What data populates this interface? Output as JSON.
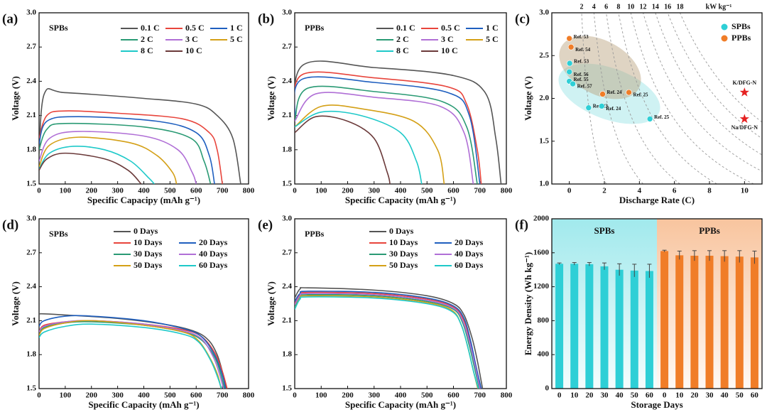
{
  "chart_data": [
    {
      "type": "line",
      "panel": "(a)",
      "label": "SPBs",
      "xlabel": "Specific Capacipy (mAh g⁻¹)",
      "ylabel": "Voltage (V)",
      "xlim": [
        0,
        800
      ],
      "ylim": [
        1.5,
        3.0
      ],
      "xticks": [
        0,
        100,
        200,
        300,
        400,
        500,
        600,
        700,
        800
      ],
      "yticks": [
        1.5,
        1.8,
        2.1,
        2.4,
        2.7,
        {
          "value": 3,
          "label": "3.0"
        }
      ],
      "legend": "upper right",
      "series": [
        {
          "name": "0.1 C",
          "color": "#555555",
          "x": [
            0,
            20,
            100,
            400,
            600,
            680,
            740,
            770
          ],
          "values": [
            1.75,
            2.29,
            2.3,
            2.25,
            2.2,
            2.1,
            1.9,
            1.5
          ]
        },
        {
          "name": "0.5 C",
          "color": "#e8453c",
          "x": [
            0,
            30,
            100,
            300,
            550,
            650,
            680,
            700
          ],
          "values": [
            1.9,
            2.1,
            2.14,
            2.12,
            2.07,
            1.95,
            1.8,
            1.5
          ]
        },
        {
          "name": "1 C",
          "color": "#1f5fbf",
          "x": [
            0,
            30,
            150,
            450,
            600,
            650,
            670
          ],
          "values": [
            1.85,
            2.05,
            2.09,
            2.05,
            1.95,
            1.75,
            1.5
          ]
        },
        {
          "name": "2 C",
          "color": "#2a9a74",
          "x": [
            0,
            30,
            100,
            400,
            580,
            630,
            655
          ],
          "values": [
            1.8,
            1.98,
            2.03,
            2.0,
            1.9,
            1.7,
            1.5
          ]
        },
        {
          "name": "3 C",
          "color": "#b06fd6",
          "x": [
            0,
            40,
            150,
            400,
            530,
            585,
            600
          ],
          "values": [
            1.7,
            1.9,
            1.96,
            1.92,
            1.8,
            1.6,
            1.5
          ]
        },
        {
          "name": "5 C",
          "color": "#d4a017",
          "x": [
            0,
            40,
            150,
            350,
            450,
            510,
            525
          ],
          "values": [
            1.65,
            1.84,
            1.91,
            1.86,
            1.75,
            1.6,
            1.5
          ]
        },
        {
          "name": "8 C",
          "color": "#1ec9c9",
          "x": [
            0,
            40,
            130,
            250,
            350,
            420,
            440
          ],
          "values": [
            1.63,
            1.77,
            1.83,
            1.8,
            1.7,
            1.55,
            1.5
          ]
        },
        {
          "name": "10 C",
          "color": "#6b3a3a",
          "x": [
            0,
            30,
            100,
            250,
            340,
            390
          ],
          "values": [
            1.62,
            1.72,
            1.77,
            1.72,
            1.62,
            1.5
          ]
        }
      ]
    },
    {
      "type": "line",
      "panel": "(b)",
      "label": "PPBs",
      "xlabel": "Specific Capacity (mAh g⁻¹)",
      "ylabel": "Voltage (V)",
      "xlim": [
        0,
        800
      ],
      "ylim": [
        1.5,
        3.0
      ],
      "xticks": [
        0,
        100,
        200,
        300,
        400,
        500,
        600,
        700,
        800
      ],
      "yticks": [
        1.5,
        1.8,
        2.1,
        2.4,
        2.7,
        {
          "value": 3,
          "label": "3.0"
        }
      ],
      "legend": "upper right",
      "series": [
        {
          "name": "0.1 C",
          "color": "#555555",
          "x": [
            0,
            30,
            300,
            600,
            720,
            760,
            780
          ],
          "values": [
            2.0,
            2.54,
            2.52,
            2.45,
            2.3,
            1.9,
            1.5
          ]
        },
        {
          "name": "0.5 C",
          "color": "#e8453c",
          "x": [
            0,
            30,
            300,
            580,
            650,
            690,
            705
          ],
          "values": [
            2.1,
            2.46,
            2.43,
            2.35,
            2.2,
            1.8,
            1.5
          ]
        },
        {
          "name": "1 C",
          "color": "#1f5fbf",
          "x": [
            0,
            30,
            300,
            580,
            660,
            700
          ],
          "values": [
            2.1,
            2.42,
            2.39,
            2.3,
            2.1,
            1.5
          ]
        },
        {
          "name": "2 C",
          "color": "#2a9a74",
          "x": [
            0,
            50,
            300,
            560,
            650,
            690
          ],
          "values": [
            2.05,
            2.34,
            2.31,
            2.22,
            2.0,
            1.5
          ]
        },
        {
          "name": "3 C",
          "color": "#b06fd6",
          "x": [
            0,
            80,
            300,
            550,
            640,
            675
          ],
          "values": [
            2.05,
            2.29,
            2.26,
            2.18,
            1.95,
            1.5
          ]
        },
        {
          "name": "5 C",
          "color": "#d4a017",
          "x": [
            0,
            100,
            250,
            450,
            540,
            565
          ],
          "values": [
            2.0,
            2.18,
            2.16,
            2.05,
            1.8,
            1.5
          ]
        },
        {
          "name": "8 C",
          "color": "#1ec9c9",
          "x": [
            0,
            100,
            250,
            400,
            460,
            480
          ],
          "values": [
            2.0,
            2.13,
            2.1,
            1.95,
            1.7,
            1.5
          ]
        },
        {
          "name": "10 C",
          "color": "#6b3a3a",
          "x": [
            0,
            80,
            200,
            300,
            350,
            360
          ],
          "values": [
            1.95,
            2.09,
            2.05,
            1.9,
            1.6,
            1.5
          ]
        }
      ]
    },
    {
      "type": "scatter",
      "panel": "(c)",
      "xlabel": "Discharge Rate (C)",
      "ylabel": "Voltage (V)",
      "xlim": [
        -1,
        11
      ],
      "ylim": [
        1.0,
        3.0
      ],
      "xticks": [
        0,
        2,
        4,
        6,
        8,
        10
      ],
      "yticks": [
        {
          "value": 1,
          "label": "1.0"
        },
        1.5,
        {
          "value": 2,
          "label": "2.0"
        },
        2.5,
        {
          "value": 3,
          "label": "3.0"
        }
      ],
      "power_ticks": [
        2,
        4,
        6,
        8,
        10,
        12,
        14,
        16,
        18
      ],
      "power_unit": "kW kg⁻¹",
      "legend": "upper right",
      "series": [
        {
          "name": "SPBs",
          "color": "#2ecfd6",
          "x": [
            0.02,
            0,
            0,
            0.2,
            1.1,
            1.85,
            4.6
          ],
          "values": [
            2.41,
            2.31,
            2.2,
            2.17,
            1.89,
            1.91,
            1.76
          ],
          "labels": [
            "Ref. 53",
            "Ref. 56",
            "Ref. 55",
            "Ref. 57",
            "Ref. 23",
            "Ref. 24",
            "Ref. 25"
          ]
        },
        {
          "name": "PPBs",
          "color": "#f07d28",
          "x": [
            0,
            0.1,
            1.9,
            3.4
          ],
          "values": [
            2.7,
            2.6,
            2.05,
            2.07
          ],
          "labels": [
            "Ref. 53",
            "Ref. 54",
            "Ref. 24",
            "Ref. 25"
          ]
        }
      ],
      "highlights": [
        {
          "label": "K/DFG-N",
          "x": 10,
          "value": 2.07,
          "color": "#e52222"
        },
        {
          "label": "Na/DFG-N",
          "x": 10,
          "value": 1.76,
          "color": "#e52222"
        }
      ]
    },
    {
      "type": "line",
      "panel": "(d)",
      "label": "SPBs",
      "xlabel": "Specific Capacity (mAh g⁻¹)",
      "ylabel": "Voltage (V)",
      "xlim": [
        0,
        800
      ],
      "ylim": [
        1.5,
        3.0
      ],
      "xticks": [
        0,
        100,
        200,
        300,
        400,
        500,
        600,
        700,
        800
      ],
      "yticks": [
        1.5,
        1.8,
        2.1,
        2.4,
        2.7,
        {
          "value": 3,
          "label": "3.0"
        }
      ],
      "legend": "upper right",
      "series": [
        {
          "name": "0 Days",
          "color": "#555555",
          "x": [
            0,
            20,
            100,
            300,
            500,
            600,
            650,
            680,
            700,
            715
          ],
          "values": [
            2.16,
            2.16,
            2.15,
            2.12,
            2.06,
            2.0,
            1.92,
            1.8,
            1.65,
            1.5
          ]
        },
        {
          "name": "10 Days",
          "color": "#e8453c",
          "x": [
            0,
            20,
            100,
            200,
            400,
            550,
            620,
            670,
            700,
            718
          ],
          "values": [
            2.0,
            2.06,
            2.09,
            2.1,
            2.07,
            2.02,
            1.96,
            1.82,
            1.65,
            1.5
          ]
        },
        {
          "name": "20 Days",
          "color": "#1f5fbf",
          "x": [
            0,
            20,
            100,
            200,
            400,
            550,
            620,
            670,
            700,
            712
          ],
          "values": [
            2.05,
            2.1,
            2.14,
            2.14,
            2.1,
            2.03,
            1.96,
            1.8,
            1.62,
            1.5
          ]
        },
        {
          "name": "30 Days",
          "color": "#2a9a74",
          "x": [
            0,
            20,
            100,
            200,
            400,
            550,
            620,
            670,
            695,
            708
          ],
          "values": [
            1.97,
            2.04,
            2.08,
            2.09,
            2.06,
            2.0,
            1.93,
            1.78,
            1.62,
            1.5
          ]
        },
        {
          "name": "40 Days",
          "color": "#b06fd6",
          "x": [
            0,
            20,
            100,
            200,
            400,
            550,
            620,
            665,
            690,
            704
          ],
          "values": [
            2.0,
            2.05,
            2.09,
            2.1,
            2.07,
            2.01,
            1.94,
            1.78,
            1.62,
            1.5
          ]
        },
        {
          "name": "50 Days",
          "color": "#d4a017",
          "x": [
            0,
            20,
            100,
            200,
            400,
            550,
            610,
            655,
            682,
            695
          ],
          "values": [
            1.97,
            2.03,
            2.08,
            2.1,
            2.06,
            2.0,
            1.92,
            1.76,
            1.62,
            1.5
          ]
        },
        {
          "name": "60 Days",
          "color": "#1ec9c9",
          "x": [
            0,
            20,
            100,
            200,
            400,
            550,
            610,
            655,
            682,
            696
          ],
          "values": [
            1.95,
            2.0,
            2.05,
            2.07,
            2.04,
            1.98,
            1.91,
            1.75,
            1.6,
            1.5
          ]
        }
      ]
    },
    {
      "type": "line",
      "panel": "(e)",
      "label": "PPBs",
      "xlabel": "Specific Capacity (mAh g⁻¹)",
      "ylabel": "Voltage (V)",
      "xlim": [
        0,
        800
      ],
      "ylim": [
        1.5,
        3.0
      ],
      "xticks": [
        0,
        100,
        200,
        300,
        400,
        500,
        600,
        700,
        800
      ],
      "yticks": [
        1.5,
        1.8,
        2.1,
        2.4,
        2.7,
        {
          "value": 3,
          "label": "3.0"
        }
      ],
      "legend": "upper right",
      "series": [
        {
          "name": "0 Days",
          "color": "#555555",
          "x": [
            0,
            20,
            50,
            300,
            500,
            600,
            640,
            670,
            690,
            710
          ],
          "values": [
            2.3,
            2.38,
            2.39,
            2.37,
            2.32,
            2.25,
            2.15,
            1.95,
            1.75,
            1.5
          ]
        },
        {
          "name": "10 Days",
          "color": "#e8453c",
          "x": [
            0,
            20,
            50,
            300,
            500,
            600,
            640,
            665,
            685,
            703
          ],
          "values": [
            2.25,
            2.33,
            2.35,
            2.34,
            2.29,
            2.22,
            2.1,
            1.9,
            1.7,
            1.5
          ]
        },
        {
          "name": "20 Days",
          "color": "#1f5fbf",
          "x": [
            0,
            20,
            50,
            300,
            500,
            600,
            640,
            665,
            685,
            705
          ],
          "values": [
            2.27,
            2.34,
            2.36,
            2.35,
            2.3,
            2.23,
            2.12,
            1.92,
            1.7,
            1.5
          ]
        },
        {
          "name": "30 Days",
          "color": "#2a9a74",
          "x": [
            0,
            20,
            50,
            300,
            500,
            600,
            635,
            660,
            680,
            698
          ],
          "values": [
            2.22,
            2.31,
            2.33,
            2.32,
            2.27,
            2.2,
            2.08,
            1.88,
            1.68,
            1.5
          ]
        },
        {
          "name": "40 Days",
          "color": "#b06fd6",
          "x": [
            0,
            20,
            50,
            300,
            500,
            600,
            635,
            662,
            682,
            700
          ],
          "values": [
            2.24,
            2.32,
            2.34,
            2.33,
            2.28,
            2.21,
            2.1,
            1.9,
            1.7,
            1.5
          ]
        },
        {
          "name": "50 Days",
          "color": "#d4a017",
          "x": [
            0,
            20,
            50,
            300,
            500,
            595,
            630,
            655,
            675,
            692
          ],
          "values": [
            2.2,
            2.3,
            2.32,
            2.31,
            2.26,
            2.19,
            2.06,
            1.86,
            1.66,
            1.5
          ]
        },
        {
          "name": "60 Days",
          "color": "#1ec9c9",
          "x": [
            0,
            20,
            50,
            300,
            500,
            595,
            630,
            655,
            675,
            694
          ],
          "values": [
            2.2,
            2.29,
            2.31,
            2.3,
            2.25,
            2.18,
            2.06,
            1.86,
            1.66,
            1.5
          ]
        }
      ]
    },
    {
      "type": "bar",
      "panel": "(f)",
      "xlabel": "Storage Days",
      "ylabel": "Energy Density (Wh kg⁻¹)",
      "ylim": [
        0,
        2000
      ],
      "yticks": [
        0,
        400,
        800,
        1200,
        1600,
        2000
      ],
      "categories": [
        "0",
        "10",
        "20",
        "30",
        "40",
        "50",
        "60"
      ],
      "series": [
        {
          "name": "SPBs",
          "color": "#2ecfd6",
          "values": [
            1470,
            1470,
            1465,
            1440,
            1400,
            1390,
            1385
          ],
          "errors": [
            10,
            15,
            20,
            40,
            70,
            75,
            80
          ]
        },
        {
          "name": "PPBs",
          "color": "#f07d28",
          "values": [
            1620,
            1570,
            1565,
            1565,
            1560,
            1555,
            1545
          ],
          "errors": [
            10,
            50,
            60,
            60,
            65,
            70,
            75
          ]
        }
      ]
    }
  ]
}
